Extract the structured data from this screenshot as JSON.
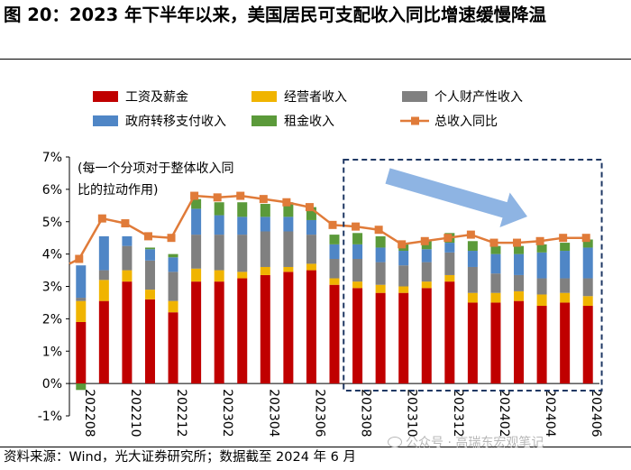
{
  "title": "图 20：2023 年下半年以来，美国居民可支配收入同比增速缓慢降温",
  "source": "资料来源：Wind，光大证券研究所；数据截至 2024 年 6 月",
  "watermark": "公众号 · 高瑞东宏观笔记",
  "annotation": {
    "line1": "(每一个分项对于整体收入同",
    "line2": "比的拉动作用)"
  },
  "colors": {
    "wage": "#C00000",
    "business": "#F0B400",
    "asset": "#808080",
    "transfer": "#4F86C6",
    "rent": "#5B9A3A",
    "total": "#E07B39",
    "arrow": "#8EB4E3",
    "box": "#1F3864"
  },
  "chart_data": {
    "type": "bar",
    "stacked": true,
    "title": "2023 年下半年以来，美国居民可支配收入同比增速缓慢降温",
    "xlabel": "",
    "ylabel": "",
    "ylim": [
      -1,
      7
    ],
    "yticks": [
      -1,
      0,
      1,
      2,
      3,
      4,
      5,
      6,
      7
    ],
    "ytick_labels": [
      "-1%",
      "0%",
      "1%",
      "2%",
      "3%",
      "4%",
      "5%",
      "6%",
      "7%"
    ],
    "categories": [
      "202208",
      "202209",
      "202210",
      "202211",
      "202212",
      "202301",
      "202302",
      "202303",
      "202304",
      "202305",
      "202306",
      "202307",
      "202308",
      "202309",
      "202310",
      "202311",
      "202312",
      "202401",
      "202402",
      "202403",
      "202404",
      "202405",
      "202406"
    ],
    "xtick_labels_shown": [
      "202208",
      "202210",
      "202212",
      "202302",
      "202304",
      "202306",
      "202308",
      "202310",
      "202312",
      "202402",
      "202404",
      "202406"
    ],
    "legend": [
      "工资及薪金",
      "经营者收入",
      "个人财产性收入",
      "政府转移支付收入",
      "租金收入",
      "总收入同比"
    ],
    "series": [
      {
        "name": "工资及薪金",
        "kind": "bar",
        "values": [
          1.9,
          2.55,
          3.15,
          2.6,
          2.2,
          3.15,
          3.15,
          3.25,
          3.35,
          3.45,
          3.5,
          3.05,
          2.95,
          2.8,
          2.8,
          2.95,
          3.15,
          2.5,
          2.5,
          2.55,
          2.4,
          2.5,
          2.4
        ]
      },
      {
        "name": "经营者收入",
        "kind": "bar",
        "values": [
          0.65,
          0.65,
          0.35,
          0.3,
          0.35,
          0.4,
          0.35,
          0.2,
          0.25,
          0.15,
          0.2,
          0.2,
          0.2,
          0.25,
          0.2,
          0.2,
          0.2,
          0.3,
          0.3,
          0.3,
          0.35,
          0.3,
          0.3
        ]
      },
      {
        "name": "个人财产性收入",
        "kind": "bar",
        "values": [
          0.1,
          0.3,
          0.75,
          0.9,
          0.9,
          1.05,
          1.1,
          1.15,
          1.1,
          1.1,
          0.9,
          0.6,
          0.7,
          0.7,
          0.65,
          0.6,
          0.7,
          0.8,
          0.6,
          0.5,
          0.5,
          0.45,
          0.55
        ]
      },
      {
        "name": "政府转移支付收入",
        "kind": "bar",
        "values": [
          1.0,
          1.05,
          0.3,
          0.35,
          0.45,
          0.8,
          0.6,
          0.55,
          0.45,
          0.45,
          0.45,
          0.45,
          0.45,
          0.45,
          0.45,
          0.4,
          0.3,
          0.5,
          0.6,
          0.65,
          0.8,
          0.85,
          0.95
        ]
      },
      {
        "name": "租金收入",
        "kind": "bar",
        "values": [
          -0.2,
          0.0,
          0.0,
          0.05,
          0.1,
          0.3,
          0.4,
          0.45,
          0.4,
          0.45,
          0.4,
          0.3,
          0.35,
          0.35,
          0.25,
          0.25,
          0.3,
          0.3,
          0.25,
          0.25,
          0.25,
          0.25,
          0.25
        ]
      },
      {
        "name": "总收入同比",
        "kind": "line",
        "values": [
          3.85,
          5.1,
          4.95,
          4.55,
          4.5,
          5.8,
          5.75,
          5.8,
          5.7,
          5.6,
          5.45,
          4.9,
          4.85,
          4.75,
          4.3,
          4.4,
          4.5,
          4.6,
          4.35,
          4.35,
          4.4,
          4.5,
          4.5
        ]
      }
    ],
    "highlight_box": {
      "from": "202308",
      "to": "202406",
      "note": "dashed box with downward arrow"
    }
  }
}
